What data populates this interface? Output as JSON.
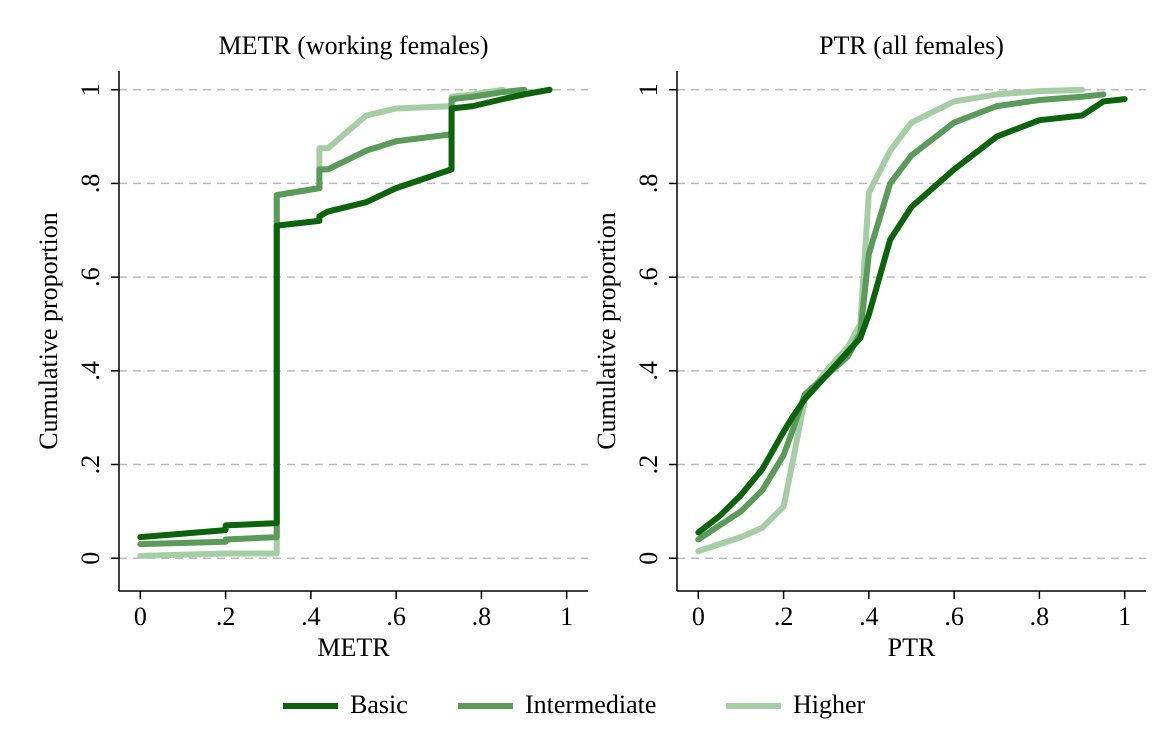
{
  "chart_data": [
    {
      "type": "line",
      "title": "METR (working females)",
      "xlabel": "METR",
      "ylabel": "Cumulative proportion",
      "x": [
        0,
        0.2,
        0.2,
        0.32,
        0.32,
        0.42,
        0.42,
        0.44,
        0.53,
        0.6,
        0.73,
        0.73,
        0.78,
        0.85,
        0.9,
        0.96
      ],
      "series": [
        {
          "name": "Basic",
          "color": "#0b640b",
          "values": [
            0.045,
            0.06,
            0.07,
            0.075,
            0.71,
            0.72,
            0.73,
            0.74,
            0.76,
            0.79,
            0.83,
            0.96,
            0.965,
            0.98,
            0.99,
            1.0
          ]
        },
        {
          "name": "Intermediate",
          "color": "#5a9b5a",
          "values": [
            0.03,
            0.035,
            0.04,
            0.045,
            0.775,
            0.79,
            0.83,
            0.83,
            0.87,
            0.89,
            0.905,
            0.98,
            0.985,
            0.995,
            1.0,
            null
          ]
        },
        {
          "name": "Higher",
          "color": "#a6cea6",
          "values": [
            0.005,
            0.01,
            0.01,
            0.01,
            0.775,
            0.79,
            0.875,
            0.875,
            0.945,
            0.96,
            0.965,
            0.985,
            0.99,
            1.0,
            null,
            null
          ]
        }
      ],
      "xlim": [
        -0.05,
        1.05
      ],
      "ylim": [
        -0.07,
        1.04
      ],
      "xticks": [
        0,
        {
          "value": 0.2,
          "label": ".2"
        },
        {
          "value": 0.4,
          "label": ".4"
        },
        {
          "value": 0.6,
          "label": ".6"
        },
        {
          "value": 0.8,
          "label": ".8"
        },
        1
      ],
      "yticks": [
        0,
        {
          "value": 0.2,
          "label": ".2"
        },
        {
          "value": 0.4,
          "label": ".4"
        },
        {
          "value": 0.6,
          "label": ".6"
        },
        {
          "value": 0.8,
          "label": ".8"
        },
        1
      ],
      "grid": true,
      "legend": "bottom"
    },
    {
      "type": "line",
      "title": "PTR (all females)",
      "xlabel": "PTR",
      "ylabel": "Cumulative proportion",
      "x": [
        0,
        0.05,
        0.1,
        0.15,
        0.2,
        0.22,
        0.25,
        0.3,
        0.35,
        0.38,
        0.4,
        0.45,
        0.5,
        0.6,
        0.7,
        0.8,
        0.9,
        0.95,
        1.0
      ],
      "series": [
        {
          "name": "Basic",
          "color": "#0b640b",
          "values": [
            0.055,
            0.09,
            0.135,
            0.19,
            0.27,
            0.3,
            0.34,
            0.39,
            0.44,
            0.47,
            0.52,
            0.68,
            0.75,
            0.83,
            0.9,
            0.935,
            0.945,
            0.975,
            0.98
          ]
        },
        {
          "name": "Intermediate",
          "color": "#5a9b5a",
          "values": [
            0.04,
            0.07,
            0.1,
            0.145,
            0.22,
            0.27,
            0.35,
            0.39,
            0.43,
            0.48,
            0.65,
            0.8,
            0.86,
            0.93,
            0.965,
            0.978,
            0.985,
            0.99,
            null
          ]
        },
        {
          "name": "Higher",
          "color": "#a6cea6",
          "values": [
            0.015,
            0.03,
            0.045,
            0.065,
            0.11,
            0.2,
            0.34,
            0.4,
            0.45,
            0.5,
            0.78,
            0.87,
            0.93,
            0.975,
            0.99,
            0.997,
            1.0,
            null,
            null
          ]
        }
      ],
      "xlim": [
        -0.05,
        1.05
      ],
      "ylim": [
        -0.07,
        1.04
      ],
      "xticks": [
        0,
        {
          "value": 0.2,
          "label": ".2"
        },
        {
          "value": 0.4,
          "label": ".4"
        },
        {
          "value": 0.6,
          "label": ".6"
        },
        {
          "value": 0.8,
          "label": ".8"
        },
        1
      ],
      "yticks": [
        0,
        {
          "value": 0.2,
          "label": ".2"
        },
        {
          "value": 0.4,
          "label": ".4"
        },
        {
          "value": 0.6,
          "label": ".6"
        },
        {
          "value": 0.8,
          "label": ".8"
        },
        1
      ],
      "grid": true
    }
  ]
}
